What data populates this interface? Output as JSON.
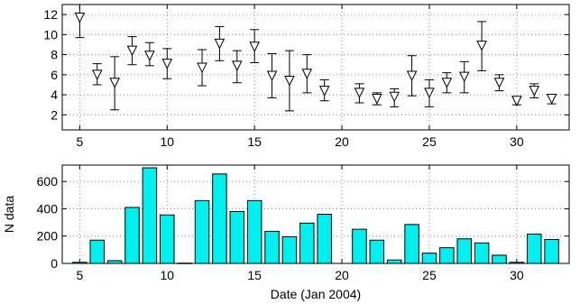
{
  "chart_data": [
    {
      "type": "scatter",
      "title": "",
      "xlabel": "",
      "ylabel": "",
      "xlim": [
        4,
        33
      ],
      "ylim": [
        0.5,
        13
      ],
      "xticks": [
        5,
        10,
        15,
        20,
        25,
        30
      ],
      "yticks": [
        2,
        4,
        6,
        8,
        10,
        12
      ],
      "grid": true,
      "marker": "triangle-down",
      "series": [
        {
          "x": [
            5,
            6,
            7,
            8,
            9,
            10,
            12,
            13,
            14,
            15,
            16,
            17,
            18,
            19,
            21,
            22,
            23,
            24,
            25,
            26,
            27,
            28,
            29,
            30,
            31,
            32
          ],
          "y": [
            11.7,
            6.0,
            5.2,
            8.4,
            7.9,
            7.1,
            6.7,
            9.1,
            6.9,
            8.8,
            5.9,
            5.4,
            6.1,
            4.4,
            4.2,
            3.6,
            3.8,
            5.9,
            4.2,
            5.2,
            5.8,
            8.9,
            5.2,
            3.4,
            4.4,
            3.6
          ],
          "ylow": [
            9.7,
            5.0,
            2.5,
            7.0,
            6.9,
            5.6,
            4.9,
            7.4,
            5.2,
            7.2,
            3.7,
            2.4,
            4.2,
            3.4,
            3.2,
            3.0,
            2.8,
            3.9,
            2.8,
            4.2,
            4.2,
            6.4,
            4.4,
            3.0,
            3.7,
            3.1
          ],
          "yhigh": [
            13.0,
            7.1,
            7.8,
            9.8,
            9.2,
            8.6,
            8.5,
            10.8,
            8.4,
            10.5,
            8.1,
            8.4,
            8.0,
            5.5,
            5.1,
            4.2,
            4.6,
            7.9,
            5.5,
            6.2,
            7.3,
            11.3,
            6.0,
            3.7,
            5.1,
            4.0
          ]
        }
      ]
    },
    {
      "type": "bar",
      "title": "",
      "xlabel": "Date (Jan 2004)",
      "ylabel": "N data",
      "xlim": [
        4,
        33
      ],
      "ylim": [
        0,
        720
      ],
      "xticks": [
        5,
        10,
        15,
        20,
        25,
        30
      ],
      "yticks": [
        0,
        200,
        400,
        600
      ],
      "grid": true,
      "bar_color": "#00f0f0",
      "x": [
        5,
        6,
        7,
        8,
        9,
        10,
        11,
        12,
        13,
        14,
        15,
        16,
        17,
        18,
        19,
        20,
        21,
        22,
        23,
        24,
        25,
        26,
        27,
        28,
        29,
        30,
        31,
        32
      ],
      "values": [
        8,
        170,
        20,
        410,
        700,
        355,
        2,
        460,
        655,
        380,
        460,
        235,
        195,
        295,
        360,
        0,
        250,
        170,
        25,
        285,
        75,
        115,
        180,
        150,
        60,
        8,
        215,
        175
      ]
    }
  ]
}
